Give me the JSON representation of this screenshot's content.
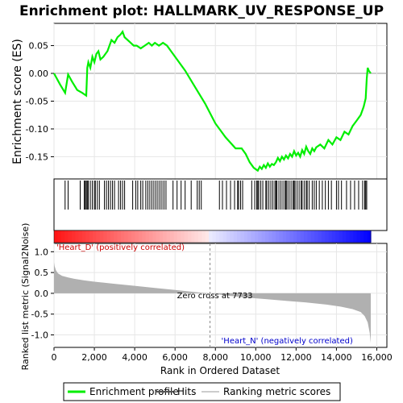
{
  "chart_data": {
    "type": "line",
    "title": "Enrichment plot: HALLMARK_UV_RESPONSE_UP",
    "top_panel": {
      "ylabel": "Enrichment score (ES)",
      "ylim": [
        -0.19,
        0.09
      ],
      "yticks": [
        0.05,
        0.0,
        -0.05,
        -0.1,
        -0.15
      ],
      "ytick_labels": [
        "0.05",
        "0.00",
        "-0.05",
        "-0.10",
        "-0.15"
      ],
      "series": [
        {
          "name": "Enrichment profile",
          "color": "#00ee00",
          "x": [
            0,
            300,
            550,
            700,
            900,
            1150,
            1400,
            1600,
            1650,
            1700,
            1800,
            1900,
            2000,
            2100,
            2200,
            2300,
            2450,
            2550,
            2650,
            2750,
            2850,
            3000,
            3150,
            3300,
            3400,
            3500,
            3650,
            3800,
            3950,
            4100,
            4300,
            4500,
            4700,
            4850,
            5000,
            5200,
            5400,
            5600,
            5800,
            6000,
            6500,
            7000,
            7500,
            8000,
            8500,
            9000,
            9300,
            9500,
            9700,
            9900,
            10100,
            10200,
            10300,
            10400,
            10500,
            10600,
            10700,
            10800,
            10900,
            11000,
            11100,
            11200,
            11300,
            11400,
            11500,
            11600,
            11700,
            11800,
            11900,
            12000,
            12100,
            12200,
            12300,
            12400,
            12500,
            12600,
            12700,
            12800,
            12900,
            13000,
            13200,
            13400,
            13600,
            13800,
            14000,
            14200,
            14400,
            14600,
            14800,
            15000,
            15200,
            15350,
            15450,
            15500,
            15550,
            15600,
            15700
          ],
          "values": [
            0.0,
            -0.02,
            -0.035,
            -0.002,
            -0.015,
            -0.03,
            -0.035,
            -0.04,
            0.01,
            0.02,
            0.01,
            0.03,
            0.02,
            0.035,
            0.04,
            0.025,
            0.03,
            0.035,
            0.04,
            0.05,
            0.06,
            0.055,
            0.065,
            0.07,
            0.075,
            0.065,
            0.06,
            0.055,
            0.05,
            0.05,
            0.045,
            0.05,
            0.055,
            0.05,
            0.055,
            0.05,
            0.055,
            0.05,
            0.04,
            0.03,
            0.005,
            -0.025,
            -0.055,
            -0.09,
            -0.115,
            -0.135,
            -0.135,
            -0.145,
            -0.16,
            -0.17,
            -0.175,
            -0.168,
            -0.172,
            -0.165,
            -0.17,
            -0.162,
            -0.168,
            -0.163,
            -0.165,
            -0.16,
            -0.152,
            -0.158,
            -0.15,
            -0.155,
            -0.148,
            -0.153,
            -0.145,
            -0.15,
            -0.14,
            -0.148,
            -0.143,
            -0.15,
            -0.138,
            -0.145,
            -0.132,
            -0.14,
            -0.145,
            -0.135,
            -0.14,
            -0.133,
            -0.128,
            -0.135,
            -0.12,
            -0.128,
            -0.115,
            -0.12,
            -0.105,
            -0.11,
            -0.095,
            -0.085,
            -0.075,
            -0.06,
            -0.045,
            -0.01,
            0.01,
            0.005,
            0.0
          ]
        }
      ]
    },
    "hits": [
      550,
      700,
      1300,
      1500,
      1550,
      1600,
      1650,
      1700,
      1800,
      1900,
      2000,
      2050,
      2150,
      2250,
      2500,
      2600,
      2700,
      2800,
      2900,
      3000,
      3200,
      3300,
      3400,
      3500,
      3900,
      4050,
      4150,
      4300,
      4400,
      4550,
      4650,
      4750,
      4850,
      4950,
      5050,
      5150,
      5250,
      5350,
      5450,
      5550,
      5900,
      6100,
      6300,
      6500,
      6800,
      7100,
      7200,
      7300,
      8200,
      8350,
      8550,
      8750,
      8950,
      9100,
      9150,
      9250,
      9350,
      9800,
      9950,
      10050,
      10100,
      10150,
      10250,
      10350,
      10500,
      10550,
      10650,
      10750,
      10850,
      10950,
      11000,
      11050,
      11150,
      11250,
      11350,
      11450,
      11500,
      11550,
      11650,
      11750,
      11850,
      11900,
      11950,
      12050,
      12150,
      12250,
      12300,
      12400,
      12500,
      12550,
      12650,
      12800,
      12900,
      13000,
      13150,
      13300,
      13450,
      13600,
      13750,
      14000,
      14100,
      14250,
      14500,
      14700,
      14900,
      15100,
      15300,
      15400,
      15450,
      15500
    ],
    "ranking_panel": {
      "ylabel": "Ranked list metric (Signal2Noise)",
      "ylim": [
        -1.3,
        1.2
      ],
      "yticks": [
        1.0,
        0.5,
        0.0,
        -0.5,
        -1.0
      ],
      "ytick_labels": [
        "1.0",
        "0.5",
        "0.0",
        "-0.5",
        "-1.0"
      ],
      "profile_x": [
        0,
        30,
        100,
        200,
        400,
        700,
        1000,
        1500,
        2000,
        3000,
        4000,
        5000,
        6000,
        7000,
        7733,
        8500,
        9500,
        10500,
        11500,
        12500,
        13500,
        14200,
        14800,
        15200,
        15400,
        15550,
        15650,
        15700
      ],
      "profile_values": [
        0.75,
        0.65,
        0.55,
        0.48,
        0.42,
        0.38,
        0.35,
        0.31,
        0.28,
        0.23,
        0.18,
        0.13,
        0.08,
        0.03,
        0.0,
        -0.05,
        -0.1,
        -0.14,
        -0.18,
        -0.22,
        -0.27,
        -0.32,
        -0.38,
        -0.45,
        -0.55,
        -0.7,
        -0.95,
        -1.2
      ],
      "zero_cross": 7733,
      "zero_cross_label": "Zero cross at 7733",
      "pos_label": "'Heart_D' (positively correlated)",
      "neg_label": "'Heart_N' (negatively correlated)"
    },
    "xlabel": "Rank in Ordered Dataset",
    "xlim": [
      0,
      16500
    ],
    "xticks": [
      0,
      2000,
      4000,
      6000,
      8000,
      10000,
      12000,
      14000,
      16000
    ],
    "xtick_labels": [
      "0",
      "2,000",
      "4,000",
      "6,000",
      "8,000",
      "10,000",
      "12,000",
      "14,000",
      "16,000"
    ],
    "n_genes": 15700,
    "legend": {
      "placement": "bottom",
      "entries": [
        {
          "label": "Enrichment profile",
          "color": "#00ee00"
        },
        {
          "label": "Hits",
          "color": "#555555"
        },
        {
          "label": "Ranking metric scores",
          "color": "#cccccc"
        }
      ]
    },
    "colors": {
      "profile": "#00ee00",
      "hit": "#000000",
      "pos_band": "#ff0000",
      "neg_band": "#0000ff",
      "metric_fill": "#b0b0b0",
      "zero_cross_line": "#888888"
    }
  }
}
